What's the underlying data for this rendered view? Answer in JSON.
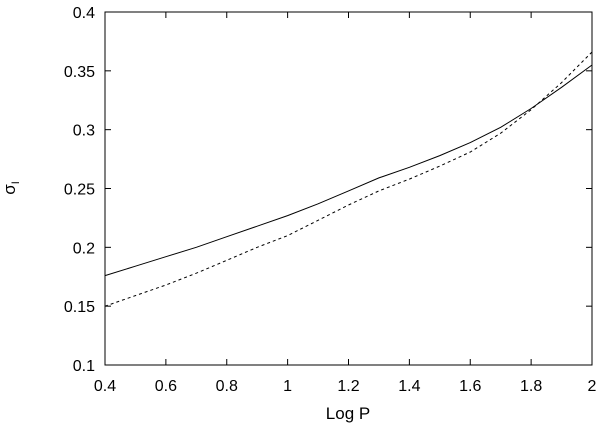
{
  "chart_data": {
    "type": "line",
    "xlabel": "Log P",
    "ylabel_main": "σ",
    "ylabel_sub": "I",
    "xlim": [
      0.4,
      2.0
    ],
    "ylim": [
      0.1,
      0.4
    ],
    "xticks": [
      0.4,
      0.6,
      0.8,
      1.0,
      1.2,
      1.4,
      1.6,
      1.8,
      2.0
    ],
    "xtick_labels": [
      "0.4",
      "0.6",
      "0.8",
      "1",
      "1.2",
      "1.4",
      "1.6",
      "1.8",
      "2"
    ],
    "yticks": [
      0.1,
      0.15,
      0.2,
      0.25,
      0.3,
      0.35,
      0.4
    ],
    "ytick_labels": [
      "0.1",
      "0.15",
      "0.2",
      "0.25",
      "0.3",
      "0.35",
      "0.4"
    ],
    "grid": false,
    "legend": false,
    "series": [
      {
        "style": "solid",
        "color": "#000000",
        "x": [
          0.4,
          0.5,
          0.6,
          0.7,
          0.8,
          0.9,
          1.0,
          1.1,
          1.2,
          1.3,
          1.4,
          1.5,
          1.6,
          1.7,
          1.8,
          1.9,
          2.0
        ],
        "y": [
          0.176,
          0.184,
          0.192,
          0.2,
          0.209,
          0.218,
          0.227,
          0.237,
          0.248,
          0.259,
          0.268,
          0.278,
          0.289,
          0.302,
          0.318,
          0.336,
          0.355
        ]
      },
      {
        "style": "dashed",
        "color": "#000000",
        "x": [
          0.4,
          0.5,
          0.6,
          0.7,
          0.8,
          0.9,
          1.0,
          1.1,
          1.2,
          1.3,
          1.4,
          1.5,
          1.6,
          1.7,
          1.8,
          1.9,
          2.0
        ],
        "y": [
          0.15,
          0.159,
          0.168,
          0.178,
          0.189,
          0.2,
          0.21,
          0.223,
          0.236,
          0.248,
          0.258,
          0.269,
          0.281,
          0.297,
          0.317,
          0.34,
          0.366
        ]
      }
    ]
  }
}
